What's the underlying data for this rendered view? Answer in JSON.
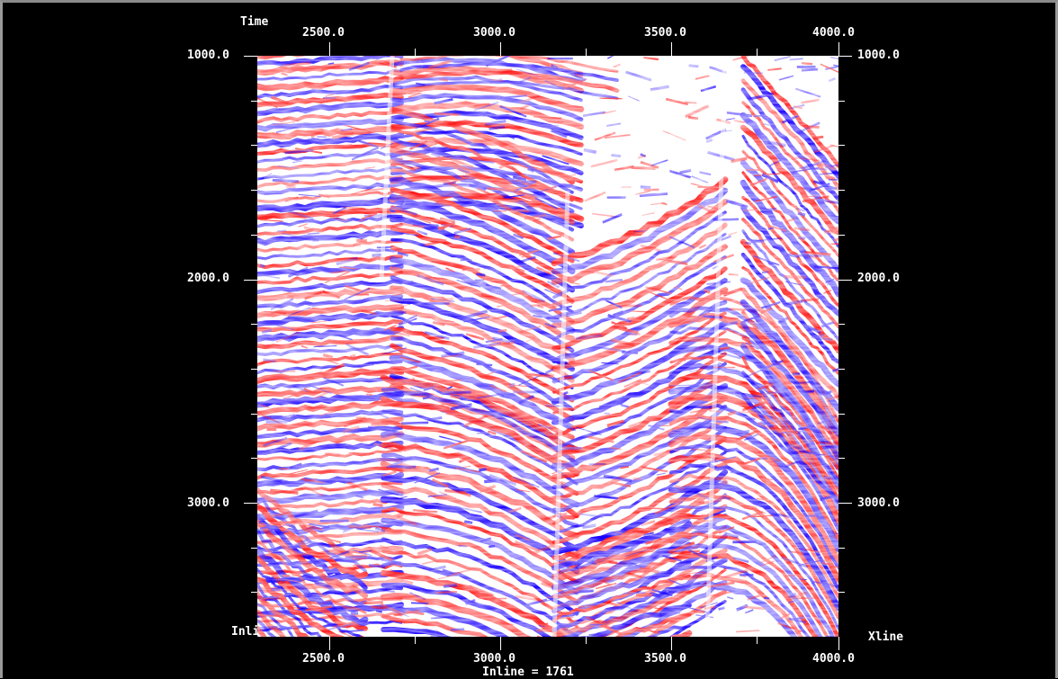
{
  "axis_titles": {
    "vertical": "Time",
    "bottom_left": "Inline",
    "bottom_right": "Xline"
  },
  "section_label": "Inline = 1761",
  "x_ticks_top": [
    "2500.0",
    "3000.0",
    "3500.0",
    "4000.0"
  ],
  "x_ticks_bottom": [
    "2500.0",
    "3000.0",
    "3500.0",
    "4000.0"
  ],
  "y_ticks_left": [
    "1000.0",
    "2000.0",
    "3000.0"
  ],
  "y_ticks_right": [
    "1000.0",
    "2000.0",
    "3000.0"
  ],
  "colors": {
    "background": "#000000",
    "positive_amplitude": "#ff1a1a",
    "negative_amplitude": "#1a00ff",
    "zero_amplitude": "#ffffff",
    "text": "#ffffff"
  },
  "chart_data": {
    "type": "heatmap",
    "xlabel": "Xline",
    "ylabel": "Time",
    "xlim": [
      2300,
      4000
    ],
    "ylim": [
      1000,
      3580
    ],
    "y_inverted": true,
    "colormap": "red-white-blue"
  }
}
